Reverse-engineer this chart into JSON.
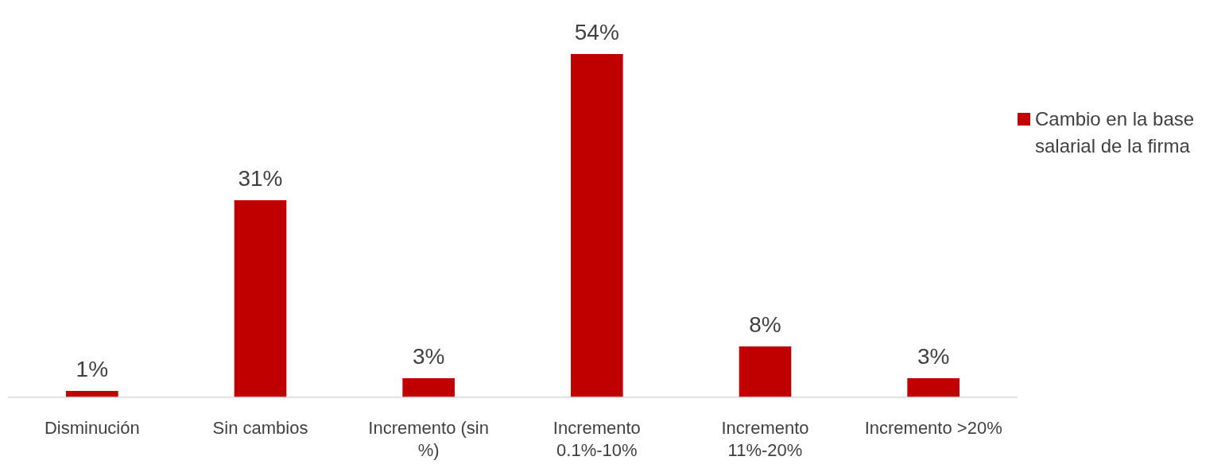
{
  "chart_data": {
    "type": "bar",
    "categories": [
      "Disminución",
      "Sin cambios",
      "Incremento (sin %)",
      "Incremento 0.1%-10%",
      "Incremento 11%-20%",
      "Incremento >20%"
    ],
    "series": [
      {
        "name": "Cambio en la base salarial de la firma",
        "color": "#c00000",
        "values": [
          1,
          31,
          3,
          54,
          8,
          3
        ],
        "value_labels": [
          "1%",
          "31%",
          "3%",
          "54%",
          "8%",
          "3%"
        ]
      }
    ],
    "legend": "right"
  }
}
